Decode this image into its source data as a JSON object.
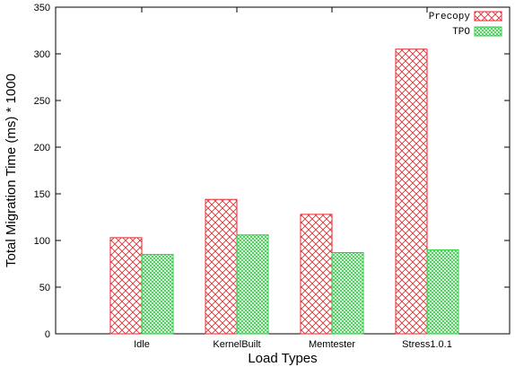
{
  "chart_data": {
    "type": "bar",
    "title": "",
    "xlabel": "Load Types",
    "ylabel": "Total Migration Time (ms) * 1000",
    "categories": [
      "Idle",
      "KernelBuilt",
      "Memtester",
      "Stress1.0.1"
    ],
    "series": [
      {
        "name": "Precopy",
        "values": [
          103,
          144,
          128,
          305
        ],
        "color": "#e8262b",
        "pattern": "crosshatch"
      },
      {
        "name": "TPO",
        "values": [
          85,
          106,
          87,
          90
        ],
        "color": "#2ecc40",
        "pattern": "crosshatch"
      }
    ],
    "ylim": [
      0,
      350
    ],
    "yticks": [
      0,
      50,
      100,
      150,
      200,
      250,
      300,
      350
    ],
    "grid": false,
    "legend_position": "top-right"
  }
}
